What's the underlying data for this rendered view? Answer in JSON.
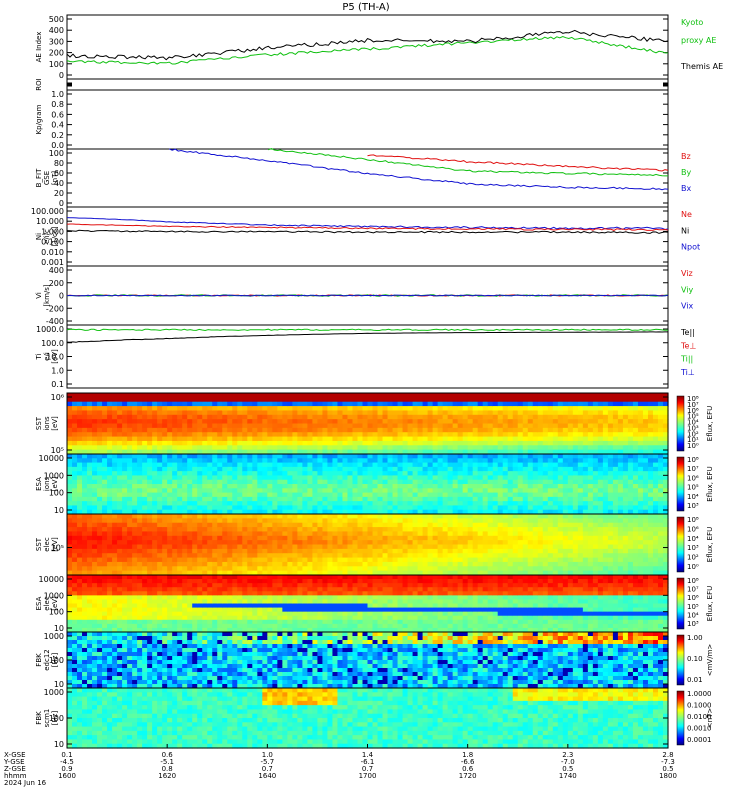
{
  "title": "P5 (TH-A)",
  "colors": {
    "black": "#000000",
    "red": "#e01010",
    "green": "#10c010",
    "blue": "#1010d0"
  },
  "panels": [
    {
      "id": "ae",
      "ylabel": [
        "AE Index"
      ],
      "yticks": [
        "500",
        "400",
        "300",
        "200",
        "100",
        "0"
      ],
      "legend": [
        {
          "text": "Kyoto",
          "color": "green"
        },
        {
          "text": "proxy AE",
          "color": "green"
        },
        {
          "text": "Themis AE",
          "color": "black"
        }
      ]
    },
    {
      "id": "roi",
      "ylabel": [
        "ROI"
      ],
      "yticks": [
        "",
        "",
        "",
        "",
        ""
      ],
      "legend": []
    },
    {
      "id": "kp",
      "ylabel": [
        "Kp/gram"
      ],
      "yticks": [
        "1.0",
        "0.8",
        "0.6",
        "0.4",
        "0.2",
        "0.0"
      ],
      "legend": []
    },
    {
      "id": "bfit",
      "ylabel": [
        "B_FIT",
        "GSE",
        "[nT]"
      ],
      "yticks": [
        "100",
        "80",
        "60",
        "40",
        "20",
        "0"
      ],
      "legend": [
        {
          "text": "Bz",
          "color": "red"
        },
        {
          "text": "By",
          "color": "green"
        },
        {
          "text": "Bx",
          "color": "blue"
        }
      ]
    },
    {
      "id": "ni",
      "ylabel": [
        "Ni",
        "e/i/c",
        "[1/cc]"
      ],
      "yticks": [
        "100.000",
        "10.000",
        "1.000",
        "0.100",
        "0.010",
        "0.001"
      ],
      "legend": [
        {
          "text": "Ne",
          "color": "red"
        },
        {
          "text": "Ni",
          "color": "black"
        },
        {
          "text": "Npot",
          "color": "blue"
        }
      ]
    },
    {
      "id": "vi",
      "ylabel": [
        "Vi",
        "[km/s]"
      ],
      "yticks": [
        "400",
        "200",
        "0",
        "-200",
        "-400"
      ],
      "legend": [
        {
          "text": "Viz",
          "color": "red"
        },
        {
          "text": "Viy",
          "color": "green"
        },
        {
          "text": "Vix",
          "color": "blue"
        }
      ]
    },
    {
      "id": "ti",
      "ylabel": [
        "Ti",
        "e/i",
        "[eV]"
      ],
      "yticks": [
        "1000.0",
        "100.0",
        "10.0",
        "1.0",
        "0.1"
      ],
      "legend": [
        {
          "text": "Te||",
          "color": "black"
        },
        {
          "text": "Te⊥",
          "color": "red"
        },
        {
          "text": "Ti||",
          "color": "green"
        },
        {
          "text": "Ti⊥",
          "color": "blue"
        }
      ]
    },
    {
      "id": "sst_i",
      "ylabel": [
        "SST",
        "ions",
        "[eV]"
      ],
      "yticks": [
        "10⁶",
        "10⁵"
      ],
      "legend": []
    },
    {
      "id": "esa_i",
      "ylabel": [
        "ESA",
        "ions",
        "[eV]"
      ],
      "yticks": [
        "10000",
        "1000",
        "100",
        "10"
      ],
      "legend": []
    },
    {
      "id": "sst_e",
      "ylabel": [
        "SST",
        "elec",
        "[eV]"
      ],
      "yticks": [
        "10⁵"
      ],
      "legend": []
    },
    {
      "id": "esa_e",
      "ylabel": [
        "ESA",
        "elec",
        "[eV]"
      ],
      "yticks": [
        "10000",
        "1000",
        "100",
        "10"
      ],
      "legend": []
    },
    {
      "id": "fbk_e",
      "ylabel": [
        "FBK",
        "edc12",
        "[Hz]"
      ],
      "yticks": [
        "1000",
        "100",
        "10"
      ],
      "legend": []
    },
    {
      "id": "fbk_b",
      "ylabel": [
        "FBK",
        "scm1",
        "[Hz]"
      ],
      "yticks": [
        "1000",
        "100",
        "10"
      ],
      "legend": []
    }
  ],
  "colorbars": [
    {
      "ticks": [
        "10⁸",
        "10⁷",
        "10⁶",
        "10⁵",
        "10⁴",
        "10³",
        "10²",
        "10¹",
        "10⁰"
      ],
      "label": "Eflux, EFU"
    },
    {
      "ticks": [
        "10⁸",
        "10⁷",
        "10⁶",
        "10⁵",
        "10⁴",
        "10³"
      ],
      "label": "Eflux, EFU"
    },
    {
      "ticks": [
        "10⁸",
        "10⁶",
        "10⁴",
        "10³",
        "10²",
        "10⁰"
      ],
      "label": "Eflux, EFU"
    },
    {
      "ticks": [
        "10⁸",
        "10⁷",
        "10⁶",
        "10⁵",
        "10⁴",
        "10³"
      ],
      "label": "Eflux, EFU"
    },
    {
      "ticks": [
        "1.00",
        "0.10",
        "0.01"
      ],
      "label": "<mV/m>"
    },
    {
      "ticks": [
        "1.0000",
        "0.1000",
        "0.0100",
        "0.0010",
        "0.0001"
      ],
      "label": "<nT>"
    }
  ],
  "xaxis": {
    "row_labels": [
      "X-GSE",
      "Y-GSE",
      "Z-GSE",
      "hhmm",
      "2024 Jun 16"
    ],
    "columns": [
      [
        "0.1",
        "-4.5",
        "0.9",
        "1600"
      ],
      [
        "0.6",
        "-5.1",
        "0.8",
        "1620"
      ],
      [
        "1.0",
        "-5.7",
        "0.7",
        "1640"
      ],
      [
        "1.4",
        "-6.1",
        "0.7",
        "1700"
      ],
      [
        "1.8",
        "-6.6",
        "0.6",
        "1720"
      ],
      [
        "2.3",
        "-7.0",
        "0.5",
        "1740"
      ],
      [
        "2.8",
        "-7.3",
        "0.5",
        "1800"
      ]
    ]
  },
  "chart_data": [
    {
      "type": "line",
      "panel": "AE Index",
      "x_unit": "hhmm",
      "x": [
        "1600",
        "1620",
        "1640",
        "1700",
        "1720",
        "1740",
        "1800"
      ],
      "series": [
        {
          "name": "Themis AE",
          "values": [
            170,
            150,
            240,
            310,
            300,
            390,
            300
          ]
        },
        {
          "name": "Kyoto proxy AE",
          "values": [
            120,
            100,
            180,
            230,
            290,
            340,
            190
          ]
        }
      ],
      "ylim": [
        0,
        500
      ]
    },
    {
      "type": "line",
      "panel": "B_FIT GSE [nT]",
      "x": [
        "1600",
        "1620",
        "1640",
        "1700",
        "1720",
        "1740",
        "1800"
      ],
      "series": [
        {
          "name": "Bz",
          "values": [
            null,
            null,
            null,
            90,
            78,
            70,
            63
          ]
        },
        {
          "name": "By",
          "values": [
            null,
            null,
            100,
            82,
            62,
            58,
            55
          ]
        },
        {
          "name": "Bx",
          "values": [
            null,
            100,
            80,
            58,
            40,
            34,
            31
          ]
        }
      ],
      "ylim": [
        0,
        100
      ]
    },
    {
      "type": "line",
      "panel": "Ni [1/cc]",
      "yscale": "log",
      "x": [
        "1600",
        "1620",
        "1640",
        "1700",
        "1720",
        "1740",
        "1800"
      ],
      "series": [
        {
          "name": "Npot",
          "values": [
            20,
            8,
            4,
            3,
            2.5,
            2.2,
            2
          ]
        },
        {
          "name": "Ne",
          "values": [
            5,
            3,
            2.5,
            2,
            1.8,
            1.6,
            1.5
          ]
        },
        {
          "name": "Ni",
          "values": [
            1.2,
            1.0,
            1.0,
            0.9,
            0.9,
            0.9,
            0.8
          ]
        }
      ],
      "ylim": [
        0.001,
        100
      ]
    },
    {
      "type": "line",
      "panel": "Vi [km/s]",
      "x": [
        "1600",
        "1620",
        "1640",
        "1700",
        "1720",
        "1740",
        "1800"
      ],
      "series": [
        {
          "name": "Viz",
          "values": [
            0,
            0,
            0,
            0,
            0,
            0,
            0
          ]
        },
        {
          "name": "Viy",
          "values": [
            0,
            0,
            0,
            0,
            0,
            0,
            0
          ]
        },
        {
          "name": "Vix",
          "values": [
            0,
            0,
            0,
            0,
            0,
            0,
            0
          ]
        }
      ],
      "ylim": [
        -500,
        500
      ]
    },
    {
      "type": "line",
      "panel": "Ti [eV]",
      "yscale": "log",
      "x": [
        "1600",
        "1620",
        "1640",
        "1700",
        "1720",
        "1740",
        "1800"
      ],
      "series": [
        {
          "name": "Ti||",
          "values": [
            2500,
            2500,
            2500,
            2500,
            2500,
            2500,
            2500
          ]
        },
        {
          "name": "Te||",
          "values": [
            250,
            500,
            900,
            1300,
            1500,
            1600,
            1700
          ]
        }
      ],
      "ylim": [
        0.1,
        5000
      ]
    },
    {
      "type": "heatmap",
      "panel": "SST ions"
    },
    {
      "type": "heatmap",
      "panel": "ESA ions"
    },
    {
      "type": "heatmap",
      "panel": "SST elec"
    },
    {
      "type": "heatmap",
      "panel": "ESA elec"
    },
    {
      "type": "heatmap",
      "panel": "FBK edc12"
    },
    {
      "type": "heatmap",
      "panel": "FBK scm1"
    }
  ]
}
